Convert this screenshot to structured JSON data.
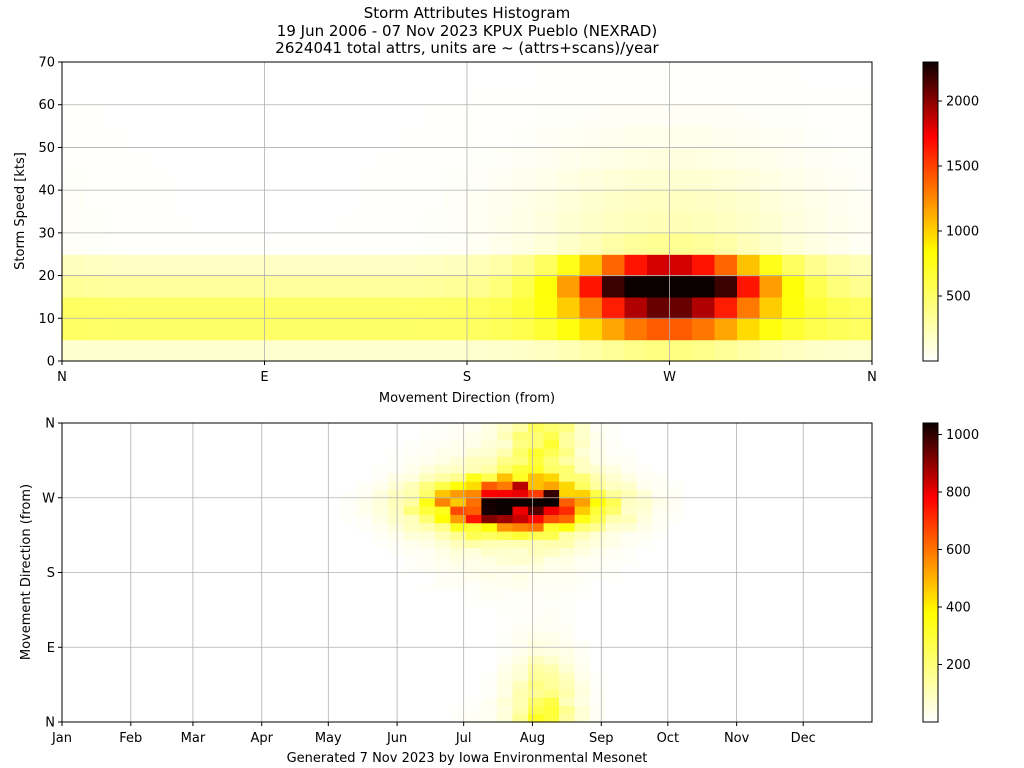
{
  "title_lines": [
    "Storm Attributes Histogram",
    "19 Jun 2006 - 07 Nov 2023 KPUX Pueblo (NEXRAD)",
    "2624041 total attrs, units are ~ (attrs+scans)/year"
  ],
  "footer": "Generated 7 Nov 2023 by Iowa Environmental Mesonet",
  "chart_data": [
    {
      "type": "heatmap",
      "xlabel": "Movement Direction (from)",
      "ylabel": "Storm Speed [kts]",
      "xlim": [
        0,
        360
      ],
      "ylim": [
        0,
        70
      ],
      "x_ticks": [
        {
          "value": 0,
          "label": "N"
        },
        {
          "value": 90,
          "label": "E"
        },
        {
          "value": 180,
          "label": "S"
        },
        {
          "value": 270,
          "label": "W"
        },
        {
          "value": 360,
          "label": "N"
        }
      ],
      "y_ticks": [
        0,
        10,
        20,
        30,
        40,
        50,
        60,
        70
      ],
      "grid": true,
      "colormap": "hot_r",
      "colorbar": {
        "min": 0,
        "max": 2300,
        "ticks": [
          500,
          1000,
          1500,
          2000
        ]
      },
      "peak": {
        "direction": 270,
        "speed": 20,
        "value": 2300
      },
      "description": "Bins of 10 deg direction x 5 kt speed; maximum near W (260-280 deg) at 15-25 kts; weak values elsewhere"
    },
    {
      "type": "heatmap",
      "xlabel": "",
      "ylabel": "Movement Direction (from)",
      "xlim": [
        1,
        366
      ],
      "ylim": [
        0,
        360
      ],
      "x_ticks": [
        {
          "value": 1,
          "label": "Jan"
        },
        {
          "value": 32,
          "label": "Feb"
        },
        {
          "value": 60,
          "label": "Mar"
        },
        {
          "value": 91,
          "label": "Apr"
        },
        {
          "value": 121,
          "label": "May"
        },
        {
          "value": 152,
          "label": "Jun"
        },
        {
          "value": 182,
          "label": "Jul"
        },
        {
          "value": 213,
          "label": "Aug"
        },
        {
          "value": 244,
          "label": "Sep"
        },
        {
          "value": 274,
          "label": "Oct"
        },
        {
          "value": 305,
          "label": "Nov"
        },
        {
          "value": 335,
          "label": "Dec"
        }
      ],
      "y_ticks": [
        {
          "value": 0,
          "label": "N"
        },
        {
          "value": 90,
          "label": "E"
        },
        {
          "value": 180,
          "label": "S"
        },
        {
          "value": 270,
          "label": "W"
        },
        {
          "value": 360,
          "label": "N"
        }
      ],
      "grid": true,
      "colormap": "hot_r",
      "colorbar": {
        "min": 0,
        "max": 1040,
        "ticks": [
          200,
          400,
          600,
          800,
          1000
        ]
      },
      "peak": {
        "day_of_year": 215,
        "direction": 270,
        "value": 1040
      },
      "description": "Weekly bins x 10 deg direction; activity from May to Sep, maximum mid-Jul through mid-Aug from W-WSW"
    }
  ]
}
